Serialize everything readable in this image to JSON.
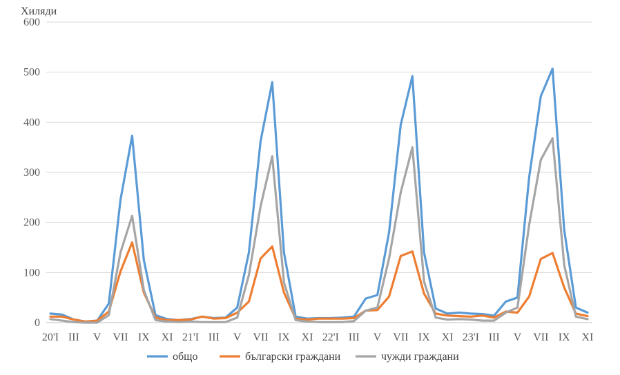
{
  "chart_data": {
    "type": "line",
    "title": "",
    "ylabel": "Хиляди",
    "xlabel": "",
    "ylim": [
      0,
      600
    ],
    "yticks": [
      0,
      100,
      200,
      300,
      400,
      500,
      600
    ],
    "grid": true,
    "legend_position": "bottom",
    "x_tick_labels": [
      {
        "i": 0,
        "label": "20'I"
      },
      {
        "i": 2,
        "label": "III"
      },
      {
        "i": 4,
        "label": "V"
      },
      {
        "i": 6,
        "label": "VII"
      },
      {
        "i": 8,
        "label": "IX"
      },
      {
        "i": 10,
        "label": "XI"
      },
      {
        "i": 12,
        "label": "21'I"
      },
      {
        "i": 14,
        "label": "III"
      },
      {
        "i": 16,
        "label": "V"
      },
      {
        "i": 18,
        "label": "VII"
      },
      {
        "i": 20,
        "label": "IX"
      },
      {
        "i": 22,
        "label": "XI"
      },
      {
        "i": 24,
        "label": "22'I"
      },
      {
        "i": 26,
        "label": "III"
      },
      {
        "i": 28,
        "label": "V"
      },
      {
        "i": 30,
        "label": "VII"
      },
      {
        "i": 32,
        "label": "IX"
      },
      {
        "i": 34,
        "label": "XI"
      },
      {
        "i": 36,
        "label": "23'I"
      },
      {
        "i": 38,
        "label": "III"
      },
      {
        "i": 40,
        "label": "V"
      },
      {
        "i": 42,
        "label": "VII"
      },
      {
        "i": 44,
        "label": "IX"
      },
      {
        "i": 46,
        "label": "XI"
      }
    ],
    "series": [
      {
        "name": "общо",
        "color": "#5B9BD5",
        "values": [
          18,
          16,
          6,
          2,
          4,
          38,
          245,
          373,
          125,
          15,
          7,
          5,
          7,
          12,
          9,
          10,
          30,
          140,
          362,
          480,
          140,
          12,
          8,
          9,
          9,
          10,
          12,
          48,
          55,
          180,
          395,
          492,
          140,
          28,
          18,
          20,
          18,
          17,
          14,
          42,
          50,
          290,
          452,
          507,
          185,
          30,
          20
        ]
      },
      {
        "name": "български граждани",
        "color": "#ED7D31",
        "values": [
          12,
          12,
          6,
          2,
          4,
          22,
          102,
          160,
          60,
          10,
          5,
          5,
          6,
          12,
          8,
          9,
          20,
          42,
          128,
          152,
          60,
          8,
          6,
          8,
          8,
          8,
          9,
          24,
          25,
          52,
          133,
          142,
          58,
          18,
          14,
          13,
          12,
          14,
          10,
          22,
          20,
          52,
          127,
          139,
          70,
          18,
          13
        ]
      },
      {
        "name": "чужди граждани",
        "color": "#A5A5A5",
        "values": [
          7,
          4,
          1,
          0,
          0,
          15,
          140,
          213,
          65,
          5,
          2,
          1,
          2,
          1,
          1,
          1,
          10,
          95,
          232,
          332,
          80,
          5,
          2,
          1,
          1,
          1,
          3,
          24,
          30,
          128,
          260,
          350,
          82,
          10,
          6,
          7,
          6,
          4,
          4,
          20,
          30,
          195,
          325,
          368,
          115,
          12,
          7
        ]
      }
    ]
  }
}
